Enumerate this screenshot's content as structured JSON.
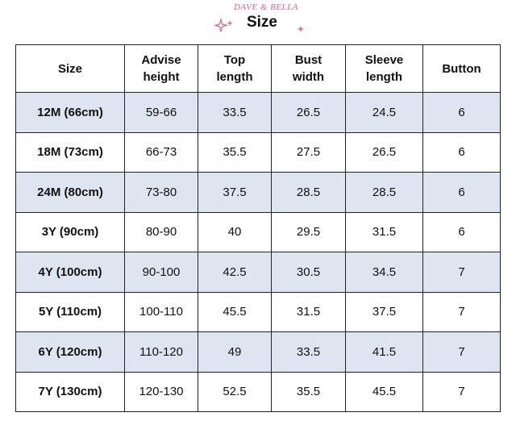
{
  "header": {
    "brand": "DAVE & BELLA",
    "title": "Size",
    "accent_color": "#e0608a"
  },
  "table": {
    "columns": [
      {
        "line1": "Size",
        "line2": ""
      },
      {
        "line1": "Advise",
        "line2": "height"
      },
      {
        "line1": "Top",
        "line2": "length"
      },
      {
        "line1": "Bust",
        "line2": "width"
      },
      {
        "line1": "Sleeve",
        "line2": "length"
      },
      {
        "line1": "Button",
        "line2": ""
      }
    ],
    "rows": [
      {
        "size": "12M (66cm)",
        "height": "59-66",
        "top": "33.5",
        "bust": "26.5",
        "sleeve": "24.5",
        "button": "6"
      },
      {
        "size": "18M (73cm)",
        "height": "66-73",
        "top": "35.5",
        "bust": "27.5",
        "sleeve": "26.5",
        "button": "6"
      },
      {
        "size": "24M (80cm)",
        "height": "73-80",
        "top": "37.5",
        "bust": "28.5",
        "sleeve": "28.5",
        "button": "6"
      },
      {
        "size": "3Y (90cm)",
        "height": "80-90",
        "top": "40",
        "bust": "29.5",
        "sleeve": "31.5",
        "button": "6"
      },
      {
        "size": "4Y (100cm)",
        "height": "90-100",
        "top": "42.5",
        "bust": "30.5",
        "sleeve": "34.5",
        "button": "7"
      },
      {
        "size": "5Y (110cm)",
        "height": "100-110",
        "top": "45.5",
        "bust": "31.5",
        "sleeve": "37.5",
        "button": "7"
      },
      {
        "size": "6Y (120cm)",
        "height": "110-120",
        "top": "49",
        "bust": "33.5",
        "sleeve": "41.5",
        "button": "7"
      },
      {
        "size": "7Y (130cm)",
        "height": "120-130",
        "top": "52.5",
        "bust": "35.5",
        "sleeve": "45.5",
        "button": "7"
      }
    ],
    "shade_color": "#dde6f0"
  }
}
